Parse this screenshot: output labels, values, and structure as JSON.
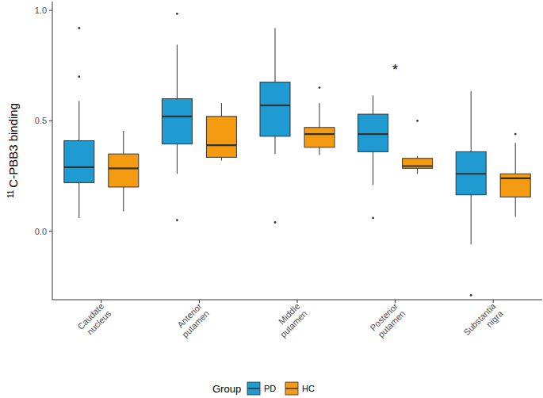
{
  "chart_data": {
    "type": "box",
    "y_label": {
      "superscript": "11",
      "text": "C-PBB3 binding"
    },
    "categories": [
      "Caudate nucleus",
      "Anterior putamen",
      "Middle putamen",
      "Posterior putamen",
      "Substantia nigra"
    ],
    "ylim": [
      -0.31,
      1.04
    ],
    "yticks": [
      {
        "value": 0,
        "label": "0.0"
      },
      {
        "value": 0.5,
        "label": "0.5"
      },
      {
        "value": 1,
        "label": "1.0"
      }
    ],
    "grid": false,
    "legend": "bottom",
    "legend_title": "Group",
    "series": [
      {
        "name": "PD",
        "color": "#1f9bd1",
        "values": [
          {
            "whisker_low": 0.06,
            "q1": 0.22,
            "median": 0.29,
            "q3": 0.41,
            "whisker_high": 0.59,
            "outliers": [
              0.7,
              0.92
            ]
          },
          {
            "whisker_low": 0.26,
            "q1": 0.395,
            "median": 0.52,
            "q3": 0.6,
            "whisker_high": 0.845,
            "outliers": [
              0.05,
              0.985
            ]
          },
          {
            "whisker_low": 0.35,
            "q1": 0.43,
            "median": 0.57,
            "q3": 0.675,
            "whisker_high": 0.92,
            "outliers": [
              0.04
            ]
          },
          {
            "whisker_low": 0.21,
            "q1": 0.36,
            "median": 0.44,
            "q3": 0.53,
            "whisker_high": 0.615,
            "outliers": [
              0.06
            ]
          },
          {
            "whisker_low": -0.06,
            "q1": 0.165,
            "median": 0.26,
            "q3": 0.36,
            "whisker_high": 0.635,
            "outliers": [
              -0.29
            ]
          }
        ]
      },
      {
        "name": "HC",
        "color": "#f59b12",
        "values": [
          {
            "whisker_low": 0.09,
            "q1": 0.2,
            "median": 0.285,
            "q3": 0.35,
            "whisker_high": 0.455,
            "outliers": []
          },
          {
            "whisker_low": 0.32,
            "q1": 0.335,
            "median": 0.39,
            "q3": 0.52,
            "whisker_high": 0.58,
            "outliers": []
          },
          {
            "whisker_low": 0.345,
            "q1": 0.38,
            "median": 0.44,
            "q3": 0.47,
            "whisker_high": 0.58,
            "outliers": [
              0.65
            ]
          },
          {
            "whisker_low": 0.26,
            "q1": 0.285,
            "median": 0.295,
            "q3": 0.33,
            "whisker_high": 0.34,
            "outliers": [
              0.5
            ]
          },
          {
            "whisker_low": 0.065,
            "q1": 0.155,
            "median": 0.24,
            "q3": 0.26,
            "whisker_high": 0.4,
            "outliers": [
              0.44
            ]
          }
        ]
      }
    ],
    "annotations": [
      {
        "text": "*",
        "category": "Posterior putamen",
        "y": 0.74
      }
    ]
  }
}
